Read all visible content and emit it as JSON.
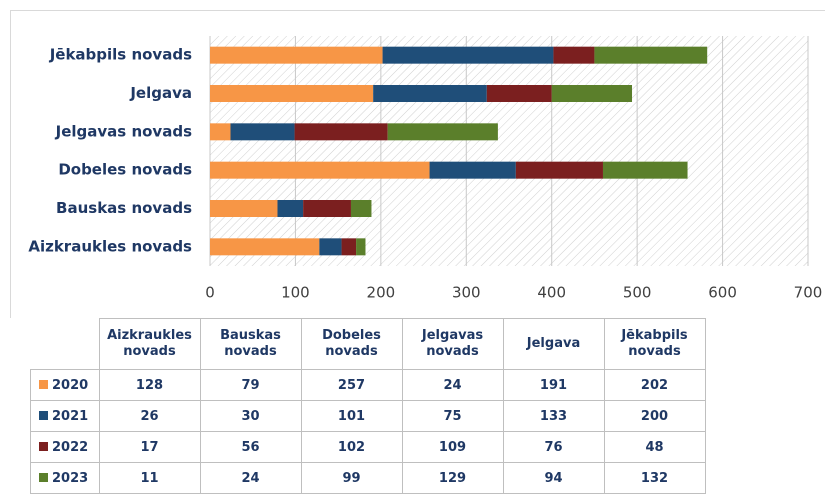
{
  "chart_data": {
    "type": "stacked-bar-horizontal",
    "categories": [
      "Aizkraukles novads",
      "Bauskas novads",
      "Dobeles novads",
      "Jelgavas novads",
      "Jelgava",
      "Jēkabpils novads"
    ],
    "series": [
      {
        "name": "2020",
        "color": "#f79646",
        "values": [
          128,
          79,
          257,
          24,
          191,
          202
        ]
      },
      {
        "name": "2021",
        "color": "#1f4e79",
        "values": [
          26,
          30,
          101,
          75,
          133,
          200
        ]
      },
      {
        "name": "2022",
        "color": "#7b1f1f",
        "values": [
          17,
          56,
          102,
          109,
          76,
          48
        ]
      },
      {
        "name": "2023",
        "color": "#5b7f2b",
        "values": [
          11,
          24,
          99,
          129,
          94,
          132
        ]
      }
    ],
    "xlim": [
      0,
      700
    ],
    "xticks": [
      0,
      100,
      200,
      300,
      400,
      500,
      600,
      700
    ],
    "grid": true
  }
}
